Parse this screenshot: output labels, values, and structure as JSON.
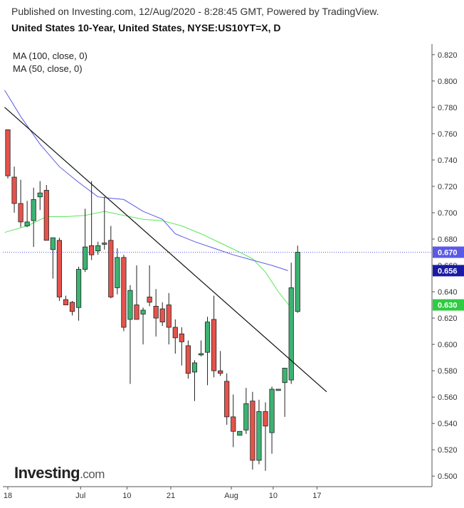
{
  "header": {
    "published": "Published on Investing.com, 12/Aug/2020 - 8:28:45 GMT, Powered by TradingView.",
    "title": "United States 10-Year, United States, NYSE:US10YT=X, D"
  },
  "legend": [
    {
      "label": "MA (100, close, 0)",
      "color": "#5a5ae6"
    },
    {
      "label": "MA (50, close, 0)",
      "color": "#5ae65a"
    }
  ],
  "logo": {
    "brand": "Investing",
    "suffix": ".com"
  },
  "colors": {
    "up": "#3cb371",
    "down": "#e5534b",
    "ma100": "#5a5ae6",
    "ma50": "#5ae65a",
    "trend": "#111111",
    "last": "#5a5ae6"
  },
  "chart_data": {
    "type": "candlestick",
    "y_ticks": [
      "0.820",
      "0.800",
      "0.780",
      "0.760",
      "0.740",
      "0.720",
      "0.700",
      "0.680",
      "0.660",
      "0.640",
      "0.620",
      "0.600",
      "0.580",
      "0.560",
      "0.540",
      "0.520",
      "0.500"
    ],
    "ylim": [
      0.492,
      0.828
    ],
    "x_ticks": [
      {
        "label": "18",
        "i": 0
      },
      {
        "label": "Jul",
        "i": 11.3
      },
      {
        "label": "10",
        "i": 18.5
      },
      {
        "label": "21",
        "i": 25.3
      },
      {
        "label": "Aug",
        "i": 34.7
      },
      {
        "label": "10",
        "i": 41.2
      },
      {
        "label": "17",
        "i": 48
      }
    ],
    "candles": [
      {
        "o": 0.763,
        "h": 0.763,
        "l": 0.726,
        "c": 0.728
      },
      {
        "o": 0.727,
        "h": 0.735,
        "l": 0.7,
        "c": 0.707
      },
      {
        "o": 0.707,
        "h": 0.725,
        "l": 0.689,
        "c": 0.693
      },
      {
        "o": 0.69,
        "h": 0.709,
        "l": 0.689,
        "c": 0.693
      },
      {
        "o": 0.694,
        "h": 0.719,
        "l": 0.674,
        "c": 0.71
      },
      {
        "o": 0.712,
        "h": 0.724,
        "l": 0.702,
        "c": 0.715
      },
      {
        "o": 0.717,
        "h": 0.721,
        "l": 0.679,
        "c": 0.679
      },
      {
        "o": 0.672,
        "h": 0.681,
        "l": 0.65,
        "c": 0.681
      },
      {
        "o": 0.679,
        "h": 0.681,
        "l": 0.633,
        "c": 0.636
      },
      {
        "o": 0.634,
        "h": 0.637,
        "l": 0.632,
        "c": 0.63
      },
      {
        "o": 0.632,
        "h": 0.633,
        "l": 0.622,
        "c": 0.625
      },
      {
        "o": 0.628,
        "h": 0.659,
        "l": 0.618,
        "c": 0.657
      },
      {
        "o": 0.657,
        "h": 0.703,
        "l": 0.655,
        "c": 0.674
      },
      {
        "o": 0.675,
        "h": 0.724,
        "l": 0.664,
        "c": 0.668
      },
      {
        "o": 0.671,
        "h": 0.678,
        "l": 0.668,
        "c": 0.675
      },
      {
        "o": 0.676,
        "h": 0.712,
        "l": 0.672,
        "c": 0.677
      },
      {
        "o": 0.679,
        "h": 0.69,
        "l": 0.635,
        "c": 0.636
      },
      {
        "o": 0.643,
        "h": 0.673,
        "l": 0.638,
        "c": 0.666
      },
      {
        "o": 0.666,
        "h": 0.668,
        "l": 0.61,
        "c": 0.613
      },
      {
        "o": 0.619,
        "h": 0.645,
        "l": 0.57,
        "c": 0.641
      },
      {
        "o": 0.63,
        "h": 0.66,
        "l": 0.619,
        "c": 0.619
      },
      {
        "o": 0.623,
        "h": 0.628,
        "l": 0.6,
        "c": 0.626
      },
      {
        "o": 0.636,
        "h": 0.66,
        "l": 0.629,
        "c": 0.632
      },
      {
        "o": 0.629,
        "h": 0.642,
        "l": 0.606,
        "c": 0.62
      },
      {
        "o": 0.627,
        "h": 0.632,
        "l": 0.614,
        "c": 0.617
      },
      {
        "o": 0.63,
        "h": 0.639,
        "l": 0.6,
        "c": 0.613
      },
      {
        "o": 0.613,
        "h": 0.619,
        "l": 0.593,
        "c": 0.605
      },
      {
        "o": 0.608,
        "h": 0.613,
        "l": 0.584,
        "c": 0.602
      },
      {
        "o": 0.599,
        "h": 0.603,
        "l": 0.574,
        "c": 0.578
      },
      {
        "o": 0.579,
        "h": 0.588,
        "l": 0.557,
        "c": 0.586
      },
      {
        "o": 0.592,
        "h": 0.603,
        "l": 0.591,
        "c": 0.593
      },
      {
        "o": 0.594,
        "h": 0.621,
        "l": 0.569,
        "c": 0.617
      },
      {
        "o": 0.619,
        "h": 0.637,
        "l": 0.575,
        "c": 0.58
      },
      {
        "o": 0.58,
        "h": 0.595,
        "l": 0.576,
        "c": 0.578
      },
      {
        "o": 0.572,
        "h": 0.578,
        "l": 0.539,
        "c": 0.545
      },
      {
        "o": 0.545,
        "h": 0.562,
        "l": 0.522,
        "c": 0.534
      },
      {
        "o": 0.531,
        "h": 0.533,
        "l": 0.532,
        "c": 0.534
      },
      {
        "o": 0.535,
        "h": 0.567,
        "l": 0.532,
        "c": 0.555
      },
      {
        "o": 0.557,
        "h": 0.564,
        "l": 0.505,
        "c": 0.512
      },
      {
        "o": 0.512,
        "h": 0.558,
        "l": 0.509,
        "c": 0.549
      },
      {
        "o": 0.549,
        "h": 0.556,
        "l": 0.504,
        "c": 0.538
      },
      {
        "o": 0.533,
        "h": 0.568,
        "l": 0.517,
        "c": 0.566
      },
      {
        "o": 0.565,
        "h": 0.565,
        "l": 0.565,
        "c": 0.566
      },
      {
        "o": 0.571,
        "h": 0.582,
        "l": 0.545,
        "c": 0.582
      },
      {
        "o": 0.573,
        "h": 0.662,
        "l": 0.57,
        "c": 0.643
      },
      {
        "o": 0.625,
        "h": 0.675,
        "l": 0.624,
        "c": 0.67
      }
    ],
    "ma100": [
      {
        "i": -0.5,
        "v": 0.793
      },
      {
        "i": 2,
        "v": 0.773
      },
      {
        "i": 5,
        "v": 0.752
      },
      {
        "i": 8,
        "v": 0.735
      },
      {
        "i": 11,
        "v": 0.723
      },
      {
        "i": 14,
        "v": 0.712
      },
      {
        "i": 16,
        "v": 0.711
      },
      {
        "i": 18,
        "v": 0.71
      },
      {
        "i": 21,
        "v": 0.701
      },
      {
        "i": 24,
        "v": 0.695
      },
      {
        "i": 26,
        "v": 0.684
      },
      {
        "i": 29,
        "v": 0.678
      },
      {
        "i": 32,
        "v": 0.673
      },
      {
        "i": 35,
        "v": 0.668
      },
      {
        "i": 38,
        "v": 0.664
      },
      {
        "i": 41,
        "v": 0.66
      },
      {
        "i": 43.5,
        "v": 0.656
      }
    ],
    "ma50": [
      {
        "i": -0.5,
        "v": 0.685
      },
      {
        "i": 3,
        "v": 0.69
      },
      {
        "i": 6,
        "v": 0.697
      },
      {
        "i": 9,
        "v": 0.697
      },
      {
        "i": 12,
        "v": 0.698
      },
      {
        "i": 15,
        "v": 0.701
      },
      {
        "i": 18,
        "v": 0.698
      },
      {
        "i": 21,
        "v": 0.695
      },
      {
        "i": 24,
        "v": 0.694
      },
      {
        "i": 27,
        "v": 0.69
      },
      {
        "i": 30,
        "v": 0.684
      },
      {
        "i": 33,
        "v": 0.677
      },
      {
        "i": 36,
        "v": 0.67
      },
      {
        "i": 38,
        "v": 0.665
      },
      {
        "i": 40,
        "v": 0.655
      },
      {
        "i": 42,
        "v": 0.64
      },
      {
        "i": 43.6,
        "v": 0.63
      }
    ],
    "trendline": [
      {
        "i": -0.5,
        "v": 0.78
      },
      {
        "i": 49.5,
        "v": 0.564
      }
    ],
    "current_line": 0.67,
    "price_labels": [
      {
        "text": "0.670",
        "v": 0.67,
        "color": "#5a5ae6"
      },
      {
        "text": "0.656",
        "v": 0.656,
        "color": "#1a1aa6"
      },
      {
        "text": "0.630",
        "v": 0.63,
        "color": "#2ecc40"
      }
    ]
  }
}
